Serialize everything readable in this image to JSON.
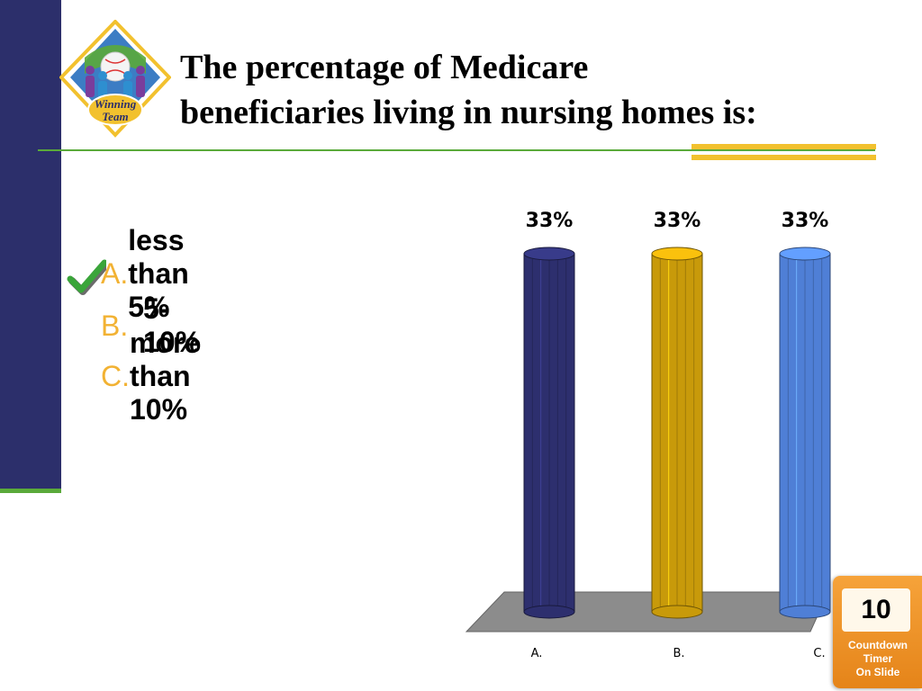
{
  "slide": {
    "title_line1": "The percentage of Medicare",
    "title_line2": "beneficiaries living in nursing homes is:"
  },
  "logo": {
    "text_line1": "Winning",
    "text_line2": "Team"
  },
  "answers": [
    {
      "letter": "A.",
      "text": "less than 5%",
      "correct": true
    },
    {
      "letter": "B.",
      "text": "5-10%",
      "correct": false
    },
    {
      "letter": "C.",
      "text": "more than 10%",
      "correct": false
    }
  ],
  "chart_data": {
    "type": "bar",
    "categories": [
      "A.",
      "B.",
      "C."
    ],
    "values": [
      33,
      33,
      33
    ],
    "data_labels": [
      "33%",
      "33%",
      "33%"
    ],
    "colors": [
      "#2d2f6e",
      "#c89a0a",
      "#4f7fd6"
    ],
    "ylim": [
      0,
      33
    ],
    "grid": false,
    "legend": "none",
    "style": "3d-cylinder"
  },
  "timer": {
    "count": "10",
    "label": "Countdown\nTimer\nOn Slide"
  },
  "colors": {
    "accent_navy": "#2c2f6b",
    "accent_green": "#5aaa3a",
    "accent_gold": "#f2c12e",
    "answer_letter": "#f2b233"
  }
}
